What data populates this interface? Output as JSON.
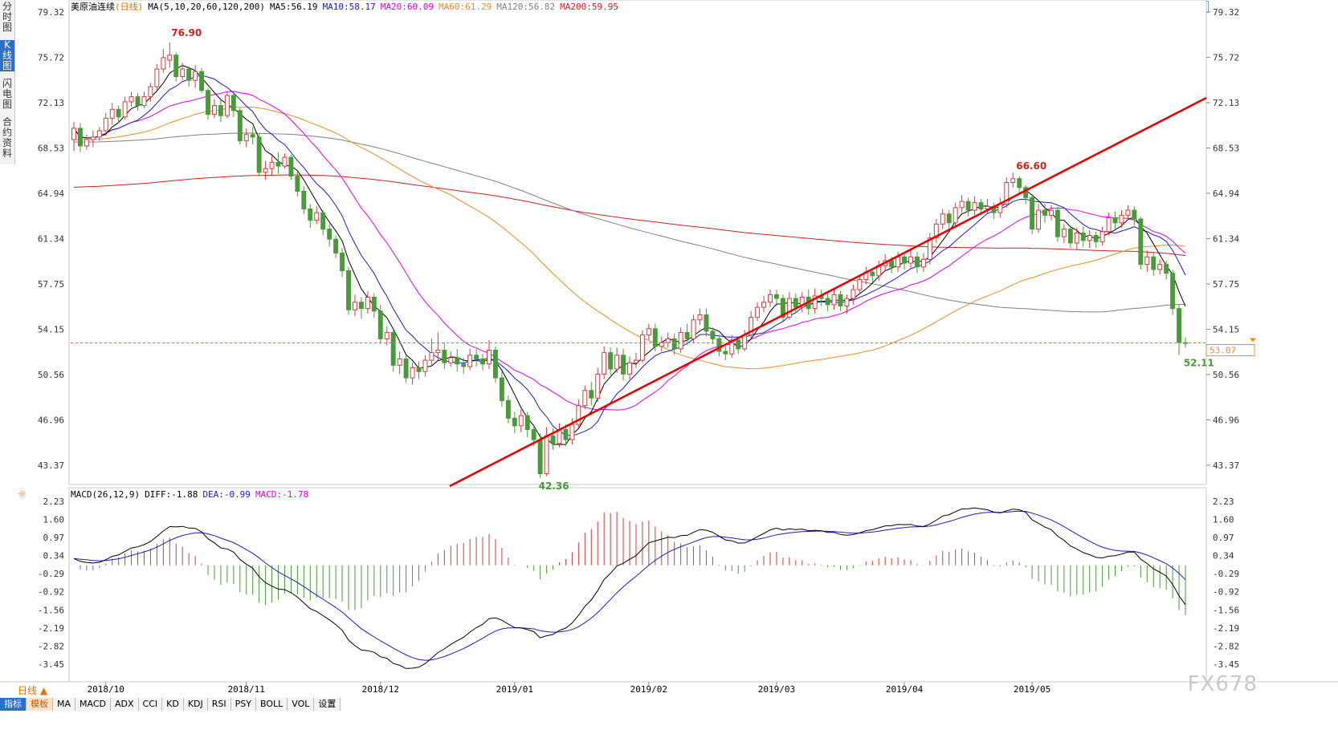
{
  "side_tabs": [
    "分时图",
    "K线图",
    "闪电图",
    "合约资料"
  ],
  "legend": {
    "symbol": "美原油连续",
    "period": "(日线)",
    "ma_spec": "MA(5,10,20,60,120,200)",
    "ma5": "MA5:56.19",
    "ma10": "MA10:58.17",
    "ma20": "MA20:60.09",
    "ma60": "MA60:61.29",
    "ma120": "MA120:56.82",
    "ma200": "MA200:59.95"
  },
  "macd_legend": {
    "name": "MACD(26,12,9)",
    "diff": "DIFF:-1.88",
    "dea": "DEA:-0.99",
    "macd": "MACD:-1.78"
  },
  "price_axis": [
    "79.32",
    "75.72",
    "72.13",
    "68.53",
    "64.94",
    "61.34",
    "57.75",
    "54.15",
    "50.56",
    "46.96",
    "43.37"
  ],
  "macd_axis": [
    "2.23",
    "1.60",
    "0.97",
    "0.34",
    "-0.29",
    "-0.92",
    "-1.56",
    "-2.19",
    "-2.82",
    "-3.45"
  ],
  "dates": [
    "2018/10",
    "2018/11",
    "2018/12",
    "2019/01",
    "2019/02",
    "2019/03",
    "2019/04",
    "2019/05"
  ],
  "annotations": {
    "high1": "76.90",
    "low1": "42.36",
    "high2": "66.60",
    "low2": "52.11",
    "last_price": "53.07"
  },
  "toolbar": {
    "dayline": "日线 ▲",
    "items": [
      "指标",
      "模板",
      "MA",
      "MACD",
      "ADX",
      "CCI",
      "KD",
      "KDJ",
      "RSI",
      "PSY",
      "BOLL",
      "VOL",
      "设置"
    ]
  },
  "brand": "FX678",
  "colors": {
    "up": "#d23c3c",
    "down": "#4a9a3a",
    "ma5": "#000000",
    "ma10": "#1a1ad0",
    "ma20": "#e600e6",
    "ma60": "#f08c20",
    "ma120": "#808080",
    "ma200": "#d02020",
    "trendline": "#e60000",
    "dea": "#1a1ad0",
    "diff": "#000000"
  },
  "chart_data": {
    "type": "candlestick",
    "last_price": 53.07,
    "price_range": [
      41.5,
      79.4
    ],
    "macd_range": [
      -3.8,
      2.35
    ],
    "highs_lows": {
      "high": 76.9,
      "low": 42.36,
      "high2": 66.6,
      "low2": 52.11
    },
    "candles": [
      [
        69.2,
        70.1,
        68.3,
        70.6
      ],
      [
        70.1,
        68.7,
        68.2,
        70.5
      ],
      [
        68.7,
        69.2,
        68.4,
        69.6
      ],
      [
        69.2,
        69.4,
        68.6,
        69.9
      ],
      [
        69.4,
        69.9,
        69.1,
        70.2
      ],
      [
        69.9,
        70.9,
        69.5,
        71.3
      ],
      [
        70.9,
        71.6,
        70.4,
        72.1
      ],
      [
        71.6,
        71.0,
        70.5,
        71.9
      ],
      [
        71.0,
        72.2,
        70.8,
        72.6
      ],
      [
        72.2,
        72.6,
        71.8,
        73.0
      ],
      [
        72.6,
        71.9,
        71.5,
        72.9
      ],
      [
        71.9,
        72.6,
        71.7,
        73.0
      ],
      [
        72.6,
        73.4,
        72.2,
        73.7
      ],
      [
        73.4,
        74.8,
        73.1,
        75.2
      ],
      [
        74.8,
        75.7,
        74.5,
        76.4
      ],
      [
        75.5,
        75.9,
        74.9,
        76.9
      ],
      [
        75.9,
        74.2,
        73.8,
        76.1
      ],
      [
        74.2,
        74.8,
        73.9,
        75.3
      ],
      [
        74.8,
        73.9,
        73.4,
        75.0
      ],
      [
        73.9,
        74.6,
        73.3,
        75.1
      ],
      [
        74.6,
        73.1,
        72.9,
        74.9
      ],
      [
        73.1,
        71.2,
        70.8,
        73.3
      ],
      [
        71.2,
        71.9,
        70.9,
        72.4
      ],
      [
        71.9,
        71.1,
        70.6,
        72.3
      ],
      [
        71.1,
        72.7,
        70.9,
        73.0
      ],
      [
        72.7,
        71.5,
        71.0,
        72.9
      ],
      [
        71.5,
        69.1,
        68.8,
        71.7
      ],
      [
        69.1,
        69.6,
        68.6,
        70.1
      ],
      [
        69.6,
        69.4,
        68.8,
        70.2
      ],
      [
        69.4,
        66.6,
        66.3,
        69.7
      ],
      [
        66.6,
        66.9,
        66.0,
        67.5
      ],
      [
        66.9,
        67.4,
        66.4,
        67.9
      ],
      [
        67.4,
        67.1,
        66.5,
        68.2
      ],
      [
        67.1,
        67.8,
        66.9,
        68.1
      ],
      [
        67.8,
        66.3,
        66.0,
        68.0
      ],
      [
        66.3,
        65.1,
        64.7,
        66.7
      ],
      [
        65.1,
        63.7,
        63.3,
        65.5
      ],
      [
        63.7,
        62.8,
        62.2,
        64.1
      ],
      [
        62.8,
        63.4,
        62.5,
        63.9
      ],
      [
        63.4,
        62.1,
        61.6,
        63.6
      ],
      [
        62.1,
        61.3,
        60.7,
        62.5
      ],
      [
        61.3,
        60.2,
        59.8,
        61.6
      ],
      [
        60.2,
        58.8,
        58.3,
        60.6
      ],
      [
        58.8,
        55.7,
        55.3,
        59.1
      ],
      [
        55.7,
        56.3,
        55.2,
        56.9
      ],
      [
        56.3,
        55.8,
        55.0,
        56.7
      ],
      [
        55.8,
        56.7,
        55.4,
        57.2
      ],
      [
        56.7,
        55.6,
        55.1,
        57.0
      ],
      [
        55.6,
        53.4,
        53.0,
        56.1
      ],
      [
        53.4,
        53.9,
        52.9,
        54.4
      ],
      [
        53.9,
        51.3,
        50.8,
        54.2
      ],
      [
        51.3,
        51.8,
        50.6,
        52.4
      ],
      [
        51.8,
        50.3,
        49.9,
        52.1
      ],
      [
        50.3,
        51.1,
        49.8,
        51.5
      ],
      [
        51.1,
        50.8,
        50.2,
        51.6
      ],
      [
        50.8,
        51.7,
        50.4,
        52.1
      ],
      [
        51.7,
        52.3,
        51.2,
        53.4
      ],
      [
        52.3,
        52.5,
        51.7,
        53.9
      ],
      [
        52.5,
        51.5,
        51.0,
        53.1
      ],
      [
        51.5,
        51.9,
        51.2,
        52.4
      ],
      [
        51.9,
        51.4,
        50.8,
        52.6
      ],
      [
        51.4,
        51.2,
        50.6,
        51.9
      ],
      [
        51.2,
        52.1,
        50.9,
        52.6
      ],
      [
        52.1,
        51.8,
        51.2,
        52.6
      ],
      [
        51.8,
        51.4,
        50.9,
        52.2
      ],
      [
        51.4,
        52.5,
        51.0,
        53.3
      ],
      [
        52.5,
        50.3,
        49.9,
        52.8
      ],
      [
        50.3,
        48.5,
        48.0,
        50.8
      ],
      [
        48.5,
        47.1,
        46.7,
        48.9
      ],
      [
        47.1,
        46.5,
        45.9,
        47.6
      ],
      [
        46.5,
        47.3,
        46.0,
        47.8
      ],
      [
        47.3,
        46.2,
        45.6,
        47.6
      ],
      [
        46.2,
        45.4,
        44.9,
        46.6
      ],
      [
        45.4,
        42.7,
        42.36,
        45.9
      ],
      [
        42.7,
        45.7,
        42.5,
        46.4
      ],
      [
        45.7,
        45.1,
        44.6,
        46.3
      ],
      [
        45.1,
        46.2,
        44.8,
        46.7
      ],
      [
        46.2,
        45.4,
        44.9,
        46.6
      ],
      [
        45.4,
        46.6,
        45.0,
        47.1
      ],
      [
        46.6,
        48.1,
        46.3,
        48.6
      ],
      [
        48.1,
        49.3,
        47.8,
        49.7
      ],
      [
        49.3,
        48.7,
        48.1,
        50.0
      ],
      [
        48.7,
        50.6,
        48.4,
        51.1
      ],
      [
        50.6,
        52.3,
        50.2,
        52.8
      ],
      [
        52.3,
        51.0,
        50.5,
        52.7
      ],
      [
        51.0,
        52.1,
        50.7,
        52.7
      ],
      [
        52.1,
        50.6,
        50.1,
        52.6
      ],
      [
        50.6,
        51.5,
        50.2,
        52.0
      ],
      [
        51.5,
        51.7,
        51.1,
        52.3
      ],
      [
        51.7,
        53.7,
        51.5,
        54.1
      ],
      [
        53.7,
        54.2,
        53.3,
        54.6
      ],
      [
        54.2,
        52.8,
        52.4,
        54.6
      ],
      [
        52.8,
        53.1,
        52.4,
        53.6
      ],
      [
        53.1,
        53.4,
        52.7,
        53.9
      ],
      [
        53.4,
        52.6,
        52.1,
        53.8
      ],
      [
        52.6,
        53.9,
        52.3,
        54.3
      ],
      [
        53.9,
        53.4,
        52.9,
        54.6
      ],
      [
        53.4,
        54.9,
        53.1,
        55.3
      ],
      [
        54.9,
        55.3,
        54.5,
        55.8
      ],
      [
        55.3,
        54.0,
        53.6,
        55.8
      ],
      [
        54.0,
        53.4,
        53.0,
        54.3
      ],
      [
        53.4,
        52.4,
        52.0,
        53.7
      ],
      [
        52.4,
        52.2,
        51.7,
        52.8
      ],
      [
        52.2,
        53.3,
        51.9,
        53.7
      ],
      [
        53.3,
        52.6,
        52.2,
        53.6
      ],
      [
        52.6,
        53.7,
        52.4,
        54.1
      ],
      [
        53.7,
        55.1,
        53.4,
        55.6
      ],
      [
        55.1,
        55.9,
        54.8,
        56.3
      ],
      [
        55.9,
        56.3,
        55.5,
        56.8
      ],
      [
        56.3,
        56.9,
        55.9,
        57.3
      ],
      [
        56.9,
        56.6,
        56.0,
        57.3
      ],
      [
        56.6,
        55.1,
        54.8,
        56.9
      ],
      [
        55.1,
        56.6,
        54.9,
        57.1
      ],
      [
        56.6,
        55.9,
        55.4,
        57.0
      ],
      [
        55.9,
        56.7,
        55.5,
        57.1
      ],
      [
        56.7,
        55.8,
        55.3,
        57.3
      ],
      [
        55.8,
        56.8,
        55.4,
        57.4
      ],
      [
        56.8,
        56.6,
        56.0,
        57.3
      ],
      [
        56.6,
        56.1,
        55.6,
        57.0
      ],
      [
        56.1,
        56.9,
        55.7,
        57.4
      ],
      [
        56.9,
        56.0,
        55.6,
        57.2
      ],
      [
        56.0,
        56.6,
        55.4,
        56.9
      ],
      [
        56.6,
        57.3,
        56.1,
        57.7
      ],
      [
        57.3,
        58.1,
        56.9,
        58.5
      ],
      [
        58.1,
        58.7,
        57.7,
        59.1
      ],
      [
        58.7,
        58.4,
        57.9,
        59.0
      ],
      [
        58.4,
        59.2,
        58.0,
        59.6
      ],
      [
        59.2,
        59.6,
        58.8,
        60.1
      ],
      [
        59.6,
        59.1,
        58.6,
        59.9
      ],
      [
        59.1,
        59.9,
        58.7,
        60.3
      ],
      [
        59.9,
        59.4,
        58.9,
        60.1
      ],
      [
        59.4,
        59.9,
        58.9,
        60.4
      ],
      [
        59.9,
        59.1,
        58.6,
        60.3
      ],
      [
        59.1,
        59.7,
        58.7,
        60.2
      ],
      [
        59.7,
        61.4,
        59.3,
        61.8
      ],
      [
        61.4,
        62.5,
        61.0,
        62.9
      ],
      [
        62.5,
        63.3,
        62.1,
        63.7
      ],
      [
        63.3,
        62.6,
        62.1,
        63.6
      ],
      [
        62.6,
        63.8,
        62.2,
        64.2
      ],
      [
        63.8,
        64.3,
        63.4,
        64.8
      ],
      [
        64.3,
        63.6,
        63.1,
        64.6
      ],
      [
        63.6,
        64.2,
        63.2,
        64.7
      ],
      [
        64.2,
        63.7,
        63.2,
        64.5
      ],
      [
        63.7,
        63.9,
        63.3,
        64.5
      ],
      [
        63.9,
        63.4,
        62.9,
        64.2
      ],
      [
        63.4,
        64.1,
        63.0,
        64.6
      ],
      [
        64.1,
        65.8,
        63.8,
        66.2
      ],
      [
        65.8,
        66.1,
        65.4,
        66.6
      ],
      [
        66.1,
        65.4,
        64.9,
        66.3
      ],
      [
        65.4,
        64.6,
        64.1,
        65.6
      ],
      [
        64.6,
        62.1,
        61.7,
        64.9
      ],
      [
        62.1,
        63.6,
        61.8,
        64.1
      ],
      [
        63.6,
        63.2,
        62.6,
        64.1
      ],
      [
        63.2,
        63.6,
        62.8,
        64.0
      ],
      [
        63.6,
        61.5,
        61.1,
        63.9
      ],
      [
        61.5,
        62.1,
        61.0,
        62.5
      ],
      [
        62.1,
        61.0,
        60.6,
        62.4
      ],
      [
        61.0,
        61.8,
        60.5,
        62.2
      ],
      [
        61.8,
        61.2,
        60.7,
        62.3
      ],
      [
        61.2,
        61.6,
        60.6,
        62.0
      ],
      [
        61.6,
        61.1,
        60.6,
        61.9
      ],
      [
        61.1,
        61.9,
        60.8,
        62.3
      ],
      [
        61.9,
        63.0,
        61.6,
        63.4
      ],
      [
        63.0,
        62.6,
        62.1,
        63.5
      ],
      [
        62.6,
        63.2,
        62.2,
        63.6
      ],
      [
        63.2,
        63.6,
        62.8,
        64.0
      ],
      [
        63.6,
        62.9,
        62.4,
        63.9
      ],
      [
        62.9,
        59.3,
        58.9,
        63.1
      ],
      [
        59.3,
        59.9,
        58.7,
        60.4
      ],
      [
        59.9,
        58.9,
        58.4,
        60.3
      ],
      [
        58.9,
        59.3,
        58.5,
        59.7
      ],
      [
        59.3,
        58.6,
        58.1,
        59.6
      ],
      [
        58.6,
        55.8,
        55.3,
        58.9
      ],
      [
        55.8,
        53.1,
        52.11,
        56.1
      ],
      [
        53.1,
        53.07,
        52.7,
        53.5
      ]
    ]
  }
}
